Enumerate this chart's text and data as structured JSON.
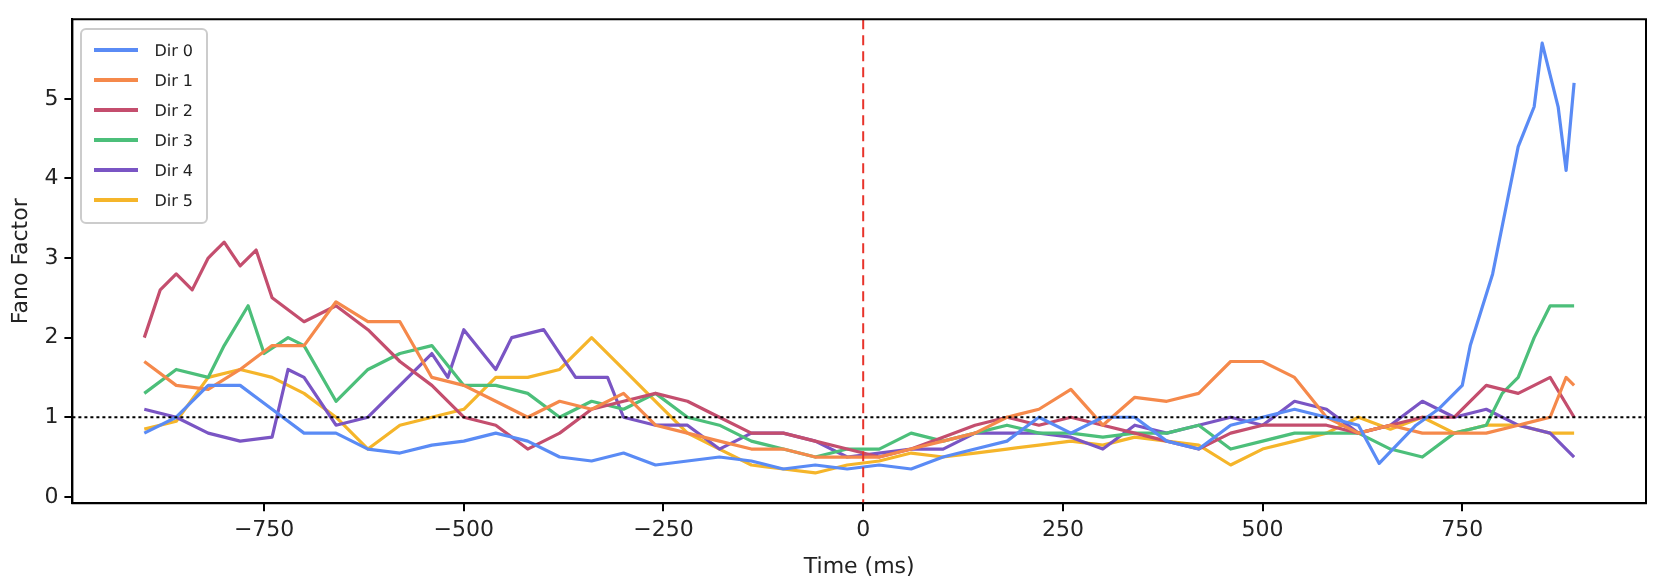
{
  "chart_data": {
    "type": "line",
    "xlabel": "Time (ms)",
    "ylabel": "Fano Factor",
    "xlim": [
      -990,
      980
    ],
    "ylim": [
      -0.08,
      6.0
    ],
    "xticks": [
      -750,
      -500,
      -250,
      0,
      250,
      500,
      750
    ],
    "yticks": [
      0,
      1,
      2,
      3,
      4,
      5
    ],
    "grid": false,
    "legend": "top left",
    "marker": "none",
    "line_style": "solid",
    "ref_lines": [
      {
        "axis": "y",
        "value": 1,
        "color": "#000000",
        "line_style": "dotted"
      },
      {
        "axis": "x",
        "value": 0,
        "color": "#e8332b",
        "line_style": "dashed"
      }
    ],
    "series": [
      {
        "name": "Dir 0",
        "color": "#5a8bf5",
        "x": [
          -900,
          -860,
          -820,
          -780,
          -740,
          -700,
          -660,
          -620,
          -580,
          -540,
          -500,
          -460,
          -420,
          -380,
          -340,
          -300,
          -260,
          -220,
          -180,
          -140,
          -100,
          -60,
          -20,
          20,
          60,
          100,
          140,
          180,
          220,
          260,
          300,
          340,
          380,
          420,
          460,
          500,
          540,
          580,
          620,
          646,
          692,
          720,
          750,
          760,
          788,
          820,
          840,
          850,
          870,
          880,
          890
        ],
        "values": [
          0.8,
          1.0,
          1.4,
          1.4,
          1.1,
          0.8,
          0.8,
          0.6,
          0.55,
          0.65,
          0.7,
          0.8,
          0.7,
          0.5,
          0.45,
          0.55,
          0.4,
          0.45,
          0.5,
          0.45,
          0.35,
          0.4,
          0.35,
          0.4,
          0.35,
          0.5,
          0.6,
          0.7,
          1.0,
          0.8,
          1.0,
          1.0,
          0.7,
          0.6,
          0.9,
          1.0,
          1.1,
          1.0,
          0.9,
          0.42,
          0.9,
          1.1,
          1.4,
          1.9,
          2.8,
          4.4,
          4.9,
          5.7,
          4.9,
          4.1,
          5.2
        ]
      },
      {
        "name": "Dir 1",
        "color": "#f5894b",
        "x": [
          -900,
          -860,
          -820,
          -780,
          -740,
          -700,
          -660,
          -620,
          -580,
          -540,
          -500,
          -460,
          -420,
          -380,
          -340,
          -300,
          -260,
          -220,
          -180,
          -140,
          -100,
          -60,
          -20,
          20,
          60,
          100,
          140,
          180,
          220,
          260,
          300,
          340,
          380,
          420,
          460,
          500,
          540,
          580,
          620,
          660,
          700,
          740,
          780,
          820,
          860,
          880,
          890
        ],
        "values": [
          1.7,
          1.4,
          1.35,
          1.6,
          1.9,
          1.9,
          2.45,
          2.2,
          2.2,
          1.5,
          1.4,
          1.2,
          1.0,
          1.2,
          1.1,
          1.3,
          0.9,
          0.8,
          0.7,
          0.6,
          0.6,
          0.5,
          0.5,
          0.5,
          0.6,
          0.7,
          0.8,
          1.0,
          1.1,
          1.35,
          0.9,
          1.25,
          1.2,
          1.3,
          1.7,
          1.7,
          1.5,
          1.0,
          0.8,
          0.9,
          0.8,
          0.8,
          0.8,
          0.9,
          1.0,
          1.5,
          1.4
        ]
      },
      {
        "name": "Dir 2",
        "color": "#c44e6e",
        "x": [
          -900,
          -880,
          -860,
          -840,
          -820,
          -800,
          -780,
          -760,
          -740,
          -700,
          -660,
          -620,
          -580,
          -540,
          -500,
          -460,
          -420,
          -380,
          -340,
          -300,
          -260,
          -220,
          -180,
          -140,
          -100,
          -60,
          -20,
          20,
          60,
          100,
          140,
          180,
          220,
          260,
          300,
          340,
          380,
          420,
          460,
          500,
          540,
          580,
          620,
          660,
          700,
          740,
          780,
          820,
          860,
          890
        ],
        "values": [
          2.0,
          2.6,
          2.8,
          2.6,
          3.0,
          3.2,
          2.9,
          3.1,
          2.5,
          2.2,
          2.4,
          2.1,
          1.7,
          1.4,
          1.0,
          0.9,
          0.6,
          0.8,
          1.1,
          1.2,
          1.3,
          1.2,
          1.0,
          0.8,
          0.8,
          0.7,
          0.6,
          0.5,
          0.6,
          0.75,
          0.9,
          1.0,
          0.9,
          1.0,
          0.9,
          0.8,
          0.7,
          0.6,
          0.8,
          0.9,
          0.9,
          0.9,
          0.8,
          0.9,
          1.0,
          1.0,
          1.4,
          1.3,
          1.5,
          1.0
        ]
      },
      {
        "name": "Dir 3",
        "color": "#4cbf7a",
        "x": [
          -900,
          -860,
          -820,
          -800,
          -770,
          -750,
          -720,
          -700,
          -660,
          -620,
          -580,
          -540,
          -500,
          -460,
          -420,
          -380,
          -340,
          -300,
          -260,
          -220,
          -180,
          -140,
          -100,
          -60,
          -20,
          20,
          60,
          100,
          140,
          180,
          220,
          260,
          300,
          340,
          380,
          420,
          460,
          500,
          540,
          580,
          620,
          660,
          700,
          740,
          780,
          800,
          820,
          840,
          860,
          890
        ],
        "values": [
          1.3,
          1.6,
          1.5,
          1.9,
          2.4,
          1.8,
          2.0,
          1.9,
          1.2,
          1.6,
          1.8,
          1.9,
          1.4,
          1.4,
          1.3,
          1.0,
          1.2,
          1.1,
          1.3,
          1.0,
          0.9,
          0.7,
          0.6,
          0.5,
          0.6,
          0.6,
          0.8,
          0.7,
          0.8,
          0.9,
          0.8,
          0.8,
          0.75,
          0.8,
          0.8,
          0.9,
          0.6,
          0.7,
          0.8,
          0.8,
          0.8,
          0.6,
          0.5,
          0.8,
          0.9,
          1.3,
          1.5,
          2.0,
          2.4,
          2.4
        ]
      },
      {
        "name": "Dir 4",
        "color": "#7a55c4",
        "x": [
          -900,
          -860,
          -820,
          -780,
          -740,
          -720,
          -700,
          -660,
          -620,
          -580,
          -540,
          -520,
          -500,
          -460,
          -440,
          -400,
          -360,
          -320,
          -300,
          -260,
          -220,
          -180,
          -140,
          -100,
          -60,
          -20,
          20,
          60,
          100,
          140,
          180,
          220,
          260,
          300,
          340,
          380,
          420,
          460,
          500,
          540,
          580,
          620,
          660,
          700,
          740,
          780,
          820,
          860,
          890
        ],
        "values": [
          1.1,
          1.0,
          0.8,
          0.7,
          0.75,
          1.6,
          1.5,
          0.9,
          1.0,
          1.4,
          1.8,
          1.5,
          2.1,
          1.6,
          2.0,
          2.1,
          1.5,
          1.5,
          1.0,
          0.9,
          0.9,
          0.6,
          0.8,
          0.8,
          0.7,
          0.5,
          0.55,
          0.6,
          0.6,
          0.8,
          0.8,
          0.8,
          0.75,
          0.6,
          0.9,
          0.8,
          0.9,
          1.0,
          0.9,
          1.2,
          1.1,
          0.8,
          0.9,
          1.2,
          1.0,
          1.1,
          0.9,
          0.8,
          0.5
        ]
      },
      {
        "name": "Dir 5",
        "color": "#f5b52a",
        "x": [
          -900,
          -860,
          -820,
          -780,
          -740,
          -700,
          -660,
          -620,
          -580,
          -540,
          -500,
          -460,
          -420,
          -380,
          -340,
          -300,
          -260,
          -220,
          -180,
          -140,
          -100,
          -60,
          -20,
          20,
          60,
          100,
          140,
          180,
          220,
          260,
          300,
          340,
          380,
          420,
          460,
          500,
          540,
          580,
          620,
          660,
          700,
          740,
          780,
          820,
          860,
          890
        ],
        "values": [
          0.85,
          0.95,
          1.5,
          1.6,
          1.5,
          1.3,
          1.0,
          0.6,
          0.9,
          1.0,
          1.1,
          1.5,
          1.5,
          1.6,
          2.0,
          1.6,
          1.2,
          0.8,
          0.6,
          0.4,
          0.35,
          0.3,
          0.4,
          0.45,
          0.55,
          0.5,
          0.55,
          0.6,
          0.65,
          0.7,
          0.65,
          0.75,
          0.7,
          0.65,
          0.4,
          0.6,
          0.7,
          0.8,
          1.0,
          0.85,
          1.0,
          0.8,
          0.9,
          0.9,
          0.8,
          0.8
        ]
      }
    ]
  }
}
